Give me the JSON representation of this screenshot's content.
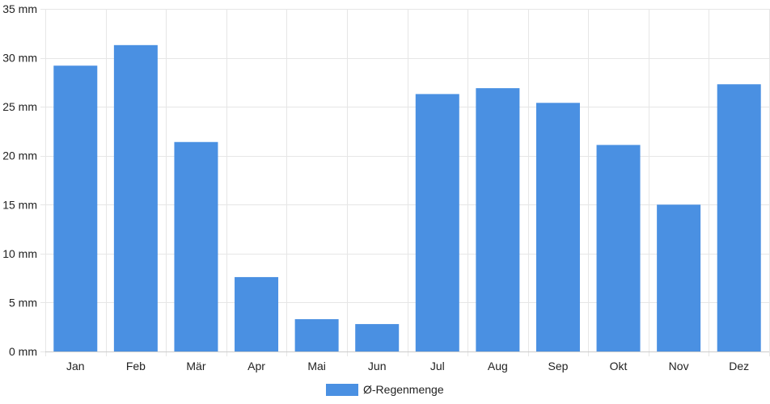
{
  "chart_data": {
    "type": "bar",
    "categories": [
      "Jan",
      "Feb",
      "Mär",
      "Apr",
      "Mai",
      "Jun",
      "Jul",
      "Aug",
      "Sep",
      "Okt",
      "Nov",
      "Dez"
    ],
    "series": [
      {
        "name": "Ø-Regenmenge",
        "values": [
          29.2,
          31.3,
          21.4,
          7.6,
          3.3,
          2.8,
          26.3,
          26.9,
          25.4,
          21.1,
          15.0,
          27.3
        ],
        "color": "#4a90e2"
      }
    ],
    "y_ticks": [
      0,
      5,
      10,
      15,
      20,
      25,
      30,
      35
    ],
    "y_unit": "mm",
    "ylim": [
      0,
      35
    ],
    "grid": true,
    "legend_position": "bottom"
  }
}
